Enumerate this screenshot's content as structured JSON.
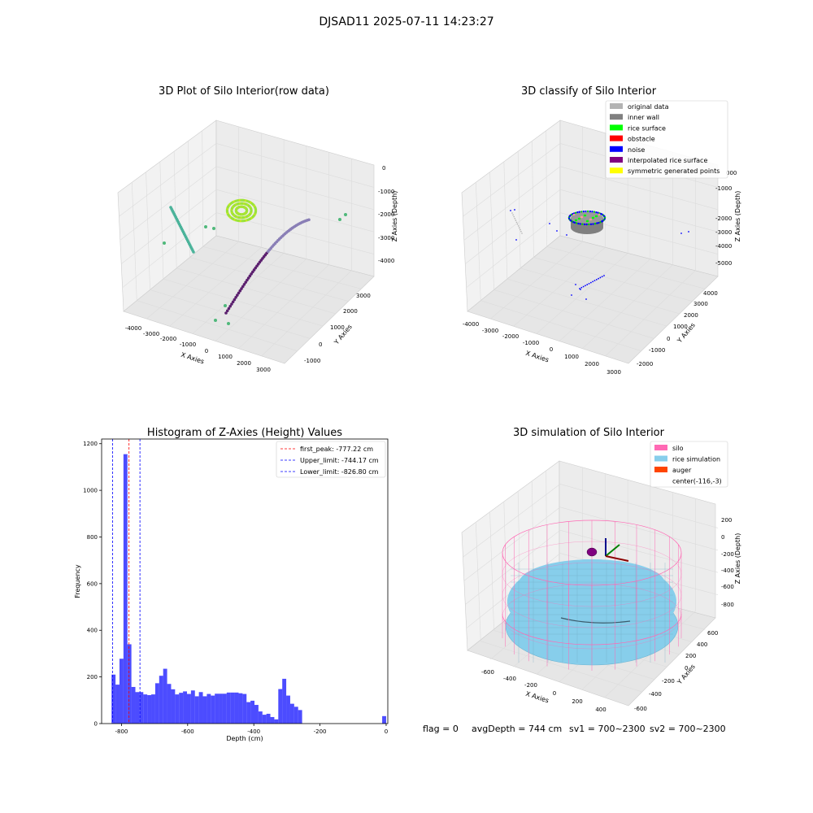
{
  "figure": {
    "suptitle": "DJSAD11 2025-07-11 14:23:27",
    "footer": {
      "flag": "flag = 0",
      "avg_depth": "avgDepth = 744 cm",
      "sv1": "sv1 = 700~2300",
      "sv2": "sv2 = 700~2300"
    }
  },
  "chart_data": [
    {
      "type": "scatter",
      "subtype": "3d-scatter",
      "title": "3D Plot of Silo Interior(row data)",
      "xlabel": "X Axies",
      "ylabel": "Y Axies",
      "zlabel": "Z Axies (Depth)",
      "x_ticks": [
        "-4000",
        "-3000",
        "-2000",
        "-1000",
        "0",
        "1000",
        "2000",
        "3000"
      ],
      "y_ticks": [
        "-1000",
        "0",
        "1000",
        "2000",
        "3000"
      ],
      "z_ticks": [
        "0",
        "-1000",
        "-2000",
        "-3000",
        "-4000"
      ],
      "colormap": "viridis",
      "grid": true
    },
    {
      "type": "scatter",
      "subtype": "3d-scatter",
      "title": "3D classify of Silo Interior",
      "xlabel": "X Axies",
      "ylabel": "Y Axies",
      "zlabel": "Z Axies (Depth)",
      "x_ticks": [
        "-4000",
        "-3000",
        "-2000",
        "-1000",
        "0",
        "1000",
        "2000",
        "3000"
      ],
      "y_ticks": [
        "-2000",
        "-1000",
        "0",
        "1000",
        "2000",
        "3000",
        "4000"
      ],
      "z_ticks": [
        "-1000",
        "-2000",
        "-3000",
        "-4000",
        "-5000"
      ],
      "z_ticks_partial": [
        "000"
      ],
      "legend": [
        {
          "label": "original data",
          "color": "#b3b3b3"
        },
        {
          "label": "inner wall",
          "color": "#808080"
        },
        {
          "label": "rice surface",
          "color": "#00ff00"
        },
        {
          "label": "obstacle",
          "color": "#ff0000"
        },
        {
          "label": "noise",
          "color": "#0000ff"
        },
        {
          "label": "interpolated rice surface",
          "color": "#800080"
        },
        {
          "label": "symmetric generated points",
          "color": "#ffff00"
        }
      ],
      "legend_position": "top-right",
      "grid": true
    },
    {
      "type": "bar",
      "subtype": "histogram",
      "title": "Histogram of Z-Axies (Height) Values",
      "xlabel": "Depth (cm)",
      "ylabel": "Frequency",
      "xlim": [
        -860,
        5
      ],
      "ylim": [
        0,
        1220
      ],
      "x_ticks": [
        -800,
        -600,
        -400,
        -200,
        0
      ],
      "y_ticks": [
        0,
        200,
        400,
        600,
        800,
        1000,
        1200
      ],
      "bar_color": "#0000ff",
      "bins": [
        {
          "left": -830,
          "right": -818,
          "count": 210
        },
        {
          "left": -818,
          "right": -806,
          "count": 167
        },
        {
          "left": -806,
          "right": -794,
          "count": 278
        },
        {
          "left": -794,
          "right": -782,
          "count": 1155
        },
        {
          "left": -782,
          "right": -770,
          "count": 340
        },
        {
          "left": -770,
          "right": -758,
          "count": 157
        },
        {
          "left": -758,
          "right": -746,
          "count": 135
        },
        {
          "left": -746,
          "right": -734,
          "count": 135
        },
        {
          "left": -734,
          "right": -722,
          "count": 125
        },
        {
          "left": -722,
          "right": -710,
          "count": 122
        },
        {
          "left": -710,
          "right": -698,
          "count": 125
        },
        {
          "left": -698,
          "right": -686,
          "count": 173
        },
        {
          "left": -686,
          "right": -674,
          "count": 205
        },
        {
          "left": -674,
          "right": -662,
          "count": 235
        },
        {
          "left": -662,
          "right": -650,
          "count": 170
        },
        {
          "left": -650,
          "right": -638,
          "count": 147
        },
        {
          "left": -638,
          "right": -626,
          "count": 125
        },
        {
          "left": -626,
          "right": -614,
          "count": 132
        },
        {
          "left": -614,
          "right": -602,
          "count": 138
        },
        {
          "left": -602,
          "right": -590,
          "count": 127
        },
        {
          "left": -590,
          "right": -578,
          "count": 142
        },
        {
          "left": -578,
          "right": -566,
          "count": 117
        },
        {
          "left": -566,
          "right": -554,
          "count": 135
        },
        {
          "left": -554,
          "right": -542,
          "count": 117
        },
        {
          "left": -542,
          "right": -530,
          "count": 127
        },
        {
          "left": -530,
          "right": -518,
          "count": 120
        },
        {
          "left": -518,
          "right": -506,
          "count": 128
        },
        {
          "left": -506,
          "right": -494,
          "count": 128
        },
        {
          "left": -494,
          "right": -482,
          "count": 128
        },
        {
          "left": -482,
          "right": -470,
          "count": 133
        },
        {
          "left": -470,
          "right": -458,
          "count": 133
        },
        {
          "left": -458,
          "right": -446,
          "count": 133
        },
        {
          "left": -446,
          "right": -434,
          "count": 130
        },
        {
          "left": -434,
          "right": -422,
          "count": 127
        },
        {
          "left": -422,
          "right": -410,
          "count": 92
        },
        {
          "left": -410,
          "right": -398,
          "count": 98
        },
        {
          "left": -398,
          "right": -386,
          "count": 80
        },
        {
          "left": -386,
          "right": -374,
          "count": 52
        },
        {
          "left": -374,
          "right": -362,
          "count": 38
        },
        {
          "left": -362,
          "right": -350,
          "count": 42
        },
        {
          "left": -350,
          "right": -338,
          "count": 28
        },
        {
          "left": -338,
          "right": -326,
          "count": 18
        },
        {
          "left": -326,
          "right": -314,
          "count": 148
        },
        {
          "left": -314,
          "right": -302,
          "count": 192
        },
        {
          "left": -302,
          "right": -290,
          "count": 120
        },
        {
          "left": -290,
          "right": -278,
          "count": 85
        },
        {
          "left": -278,
          "right": -266,
          "count": 72
        },
        {
          "left": -266,
          "right": -254,
          "count": 58
        },
        {
          "left": -12,
          "right": 0,
          "count": 32
        }
      ],
      "vlines": [
        {
          "x": -777.22,
          "color": "#ff0000",
          "label": "first_peak: -777.22 cm"
        },
        {
          "x": -744.17,
          "color": "#0000ff",
          "label": "Upper_limit: -744.17 cm"
        },
        {
          "x": -826.8,
          "color": "#0000ff",
          "label": "Lower_limit: -826.80 cm"
        }
      ],
      "legend_position": "top-right",
      "grid": false
    },
    {
      "type": "scatter",
      "subtype": "3d-surface",
      "title": "3D simulation of Silo Interior",
      "xlabel": "X Axies",
      "ylabel": "Y Axies",
      "zlabel": "Z Axies (Depth)",
      "x_ticks": [
        "-600",
        "-400",
        "-200",
        "0",
        "200",
        "400"
      ],
      "y_ticks": [
        "-600",
        "-400",
        "-200",
        "0",
        "200",
        "400",
        "600"
      ],
      "z_ticks": [
        "200",
        "0",
        "-200",
        "-400",
        "-600",
        "-800"
      ],
      "legend": [
        {
          "label": "silo",
          "color": "#ff69b4"
        },
        {
          "label": "rice simulation",
          "color": "#87ceeb"
        },
        {
          "label": "auger",
          "color": "#ff4500"
        },
        {
          "label": "center(-116,-3)",
          "color": ""
        }
      ],
      "legend_position": "top-right",
      "grid": true
    }
  ]
}
